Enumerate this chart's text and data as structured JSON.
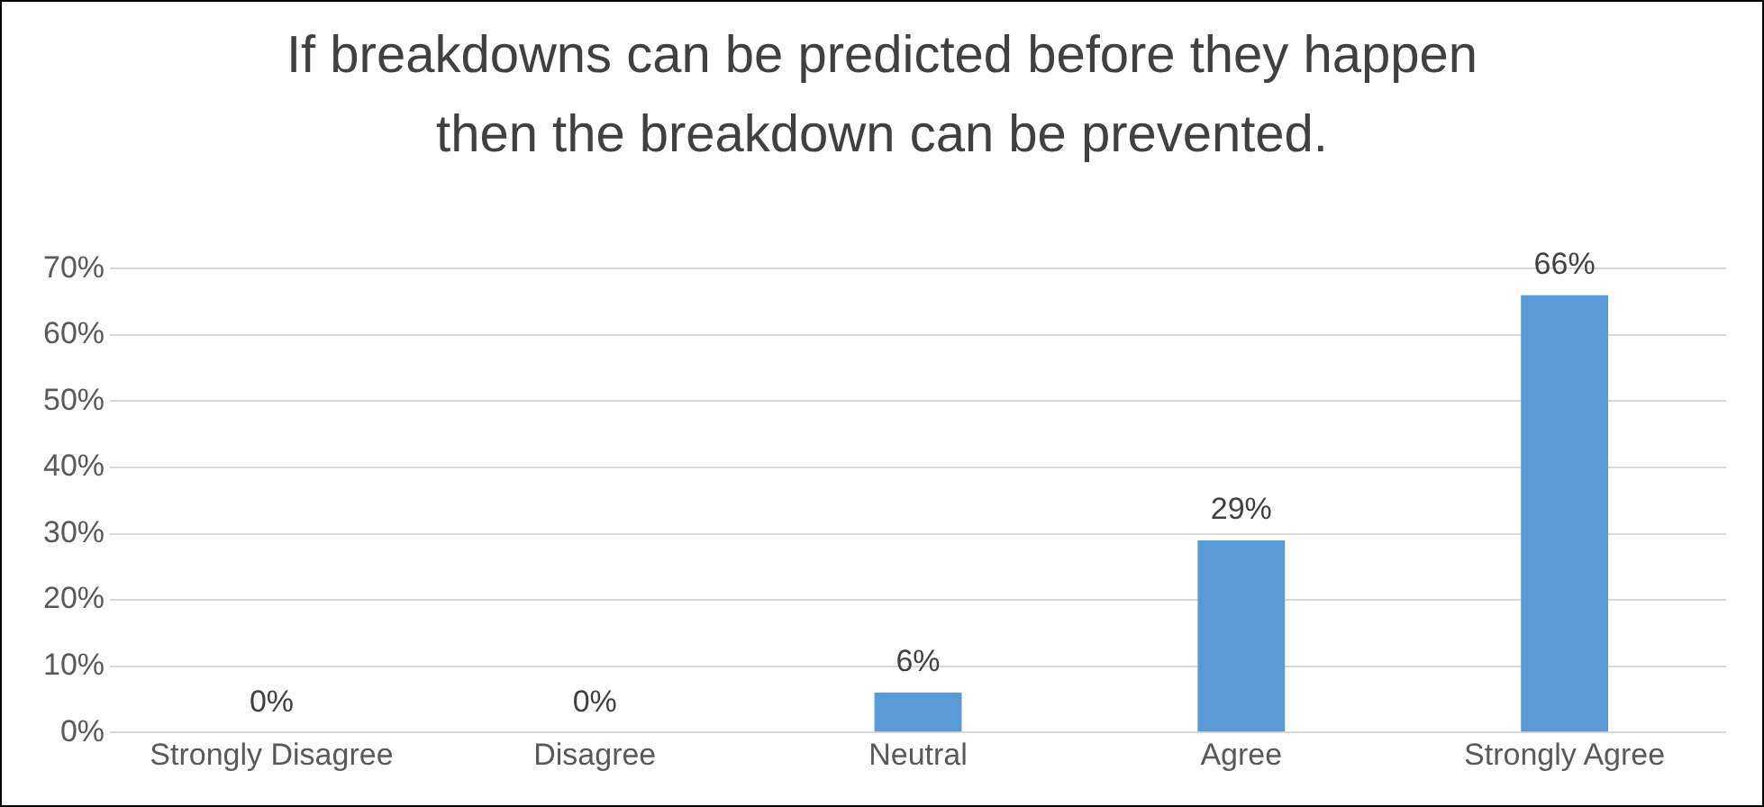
{
  "chart_data": {
    "type": "bar",
    "title": "If breakdowns can be predicted before they happen then the breakdown can be prevented.",
    "categories": [
      "Strongly Disagree",
      "Disagree",
      "Neutral",
      "Agree",
      "Strongly Agree"
    ],
    "values": [
      0,
      0,
      6,
      29,
      66
    ],
    "color": "#5b9bd5",
    "value_labels": [
      "0%",
      "0%",
      "6%",
      "29%",
      "66%"
    ],
    "ylim": [
      0,
      70
    ],
    "yticks": [
      {
        "value": 0,
        "label": "0%"
      },
      {
        "value": 10,
        "label": "10%"
      },
      {
        "value": 20,
        "label": "20%"
      },
      {
        "value": 30,
        "label": "30%"
      },
      {
        "value": 40,
        "label": "40%"
      },
      {
        "value": 50,
        "label": "50%"
      },
      {
        "value": 60,
        "label": "60%"
      },
      {
        "value": 70,
        "label": "70%"
      }
    ],
    "grid": "y",
    "legend": false
  }
}
